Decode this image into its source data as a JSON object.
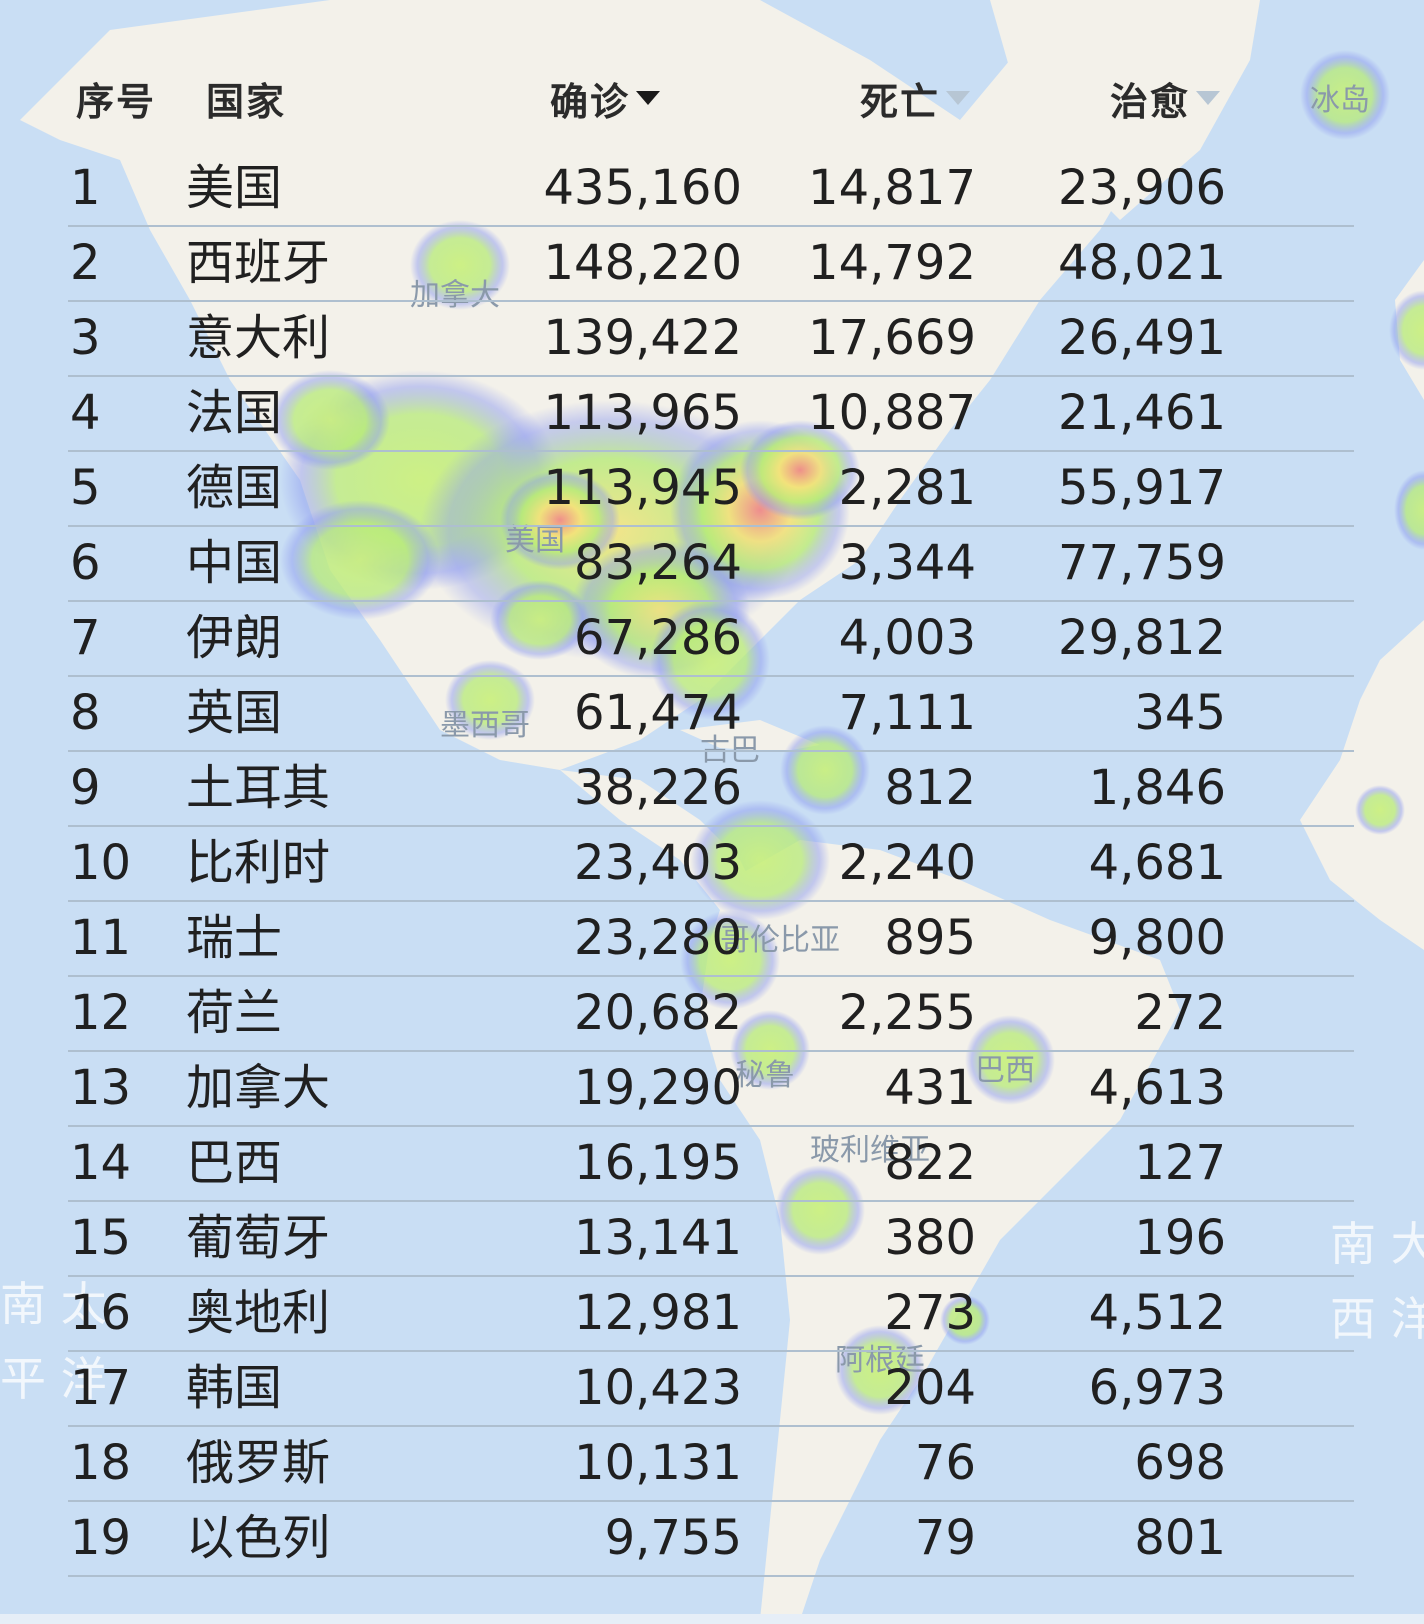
{
  "table": {
    "headers": {
      "index": "序号",
      "country": "国家",
      "confirmed": "确诊",
      "deaths": "死亡",
      "cured": "治愈"
    },
    "sort": {
      "active": "confirmed"
    },
    "rows": [
      {
        "index": "1",
        "country": "美国",
        "confirmed": "435,160",
        "deaths": "14,817",
        "cured": "23,906"
      },
      {
        "index": "2",
        "country": "西班牙",
        "confirmed": "148,220",
        "deaths": "14,792",
        "cured": "48,021"
      },
      {
        "index": "3",
        "country": "意大利",
        "confirmed": "139,422",
        "deaths": "17,669",
        "cured": "26,491"
      },
      {
        "index": "4",
        "country": "法国",
        "confirmed": "113,965",
        "deaths": "10,887",
        "cured": "21,461"
      },
      {
        "index": "5",
        "country": "德国",
        "confirmed": "113,945",
        "deaths": "2,281",
        "cured": "55,917"
      },
      {
        "index": "6",
        "country": "中国",
        "confirmed": "83,264",
        "deaths": "3,344",
        "cured": "77,759"
      },
      {
        "index": "7",
        "country": "伊朗",
        "confirmed": "67,286",
        "deaths": "4,003",
        "cured": "29,812"
      },
      {
        "index": "8",
        "country": "英国",
        "confirmed": "61,474",
        "deaths": "7,111",
        "cured": "345"
      },
      {
        "index": "9",
        "country": "土耳其",
        "confirmed": "38,226",
        "deaths": "812",
        "cured": "1,846"
      },
      {
        "index": "10",
        "country": "比利时",
        "confirmed": "23,403",
        "deaths": "2,240",
        "cured": "4,681"
      },
      {
        "index": "11",
        "country": "瑞士",
        "confirmed": "23,280",
        "deaths": "895",
        "cured": "9,800"
      },
      {
        "index": "12",
        "country": "荷兰",
        "confirmed": "20,682",
        "deaths": "2,255",
        "cured": "272"
      },
      {
        "index": "13",
        "country": "加拿大",
        "confirmed": "19,290",
        "deaths": "431",
        "cured": "4,613"
      },
      {
        "index": "14",
        "country": "巴西",
        "confirmed": "16,195",
        "deaths": "822",
        "cured": "127"
      },
      {
        "index": "15",
        "country": "葡萄牙",
        "confirmed": "13,141",
        "deaths": "380",
        "cured": "196"
      },
      {
        "index": "16",
        "country": "奥地利",
        "confirmed": "12,981",
        "deaths": "273",
        "cured": "4,512"
      },
      {
        "index": "17",
        "country": "韩国",
        "confirmed": "10,423",
        "deaths": "204",
        "cured": "6,973"
      },
      {
        "index": "18",
        "country": "俄罗斯",
        "confirmed": "10,131",
        "deaths": "76",
        "cured": "698"
      },
      {
        "index": "19",
        "country": "以色列",
        "confirmed": "9,755",
        "deaths": "79",
        "cured": "801"
      }
    ]
  },
  "map": {
    "labels": {
      "canada": "加拿大",
      "usa": "美国",
      "mexico": "墨西哥",
      "cuba": "古巴",
      "colombia": "哥伦比亚",
      "peru": "秘鲁",
      "brazil": "巴西",
      "bolivia": "玻利维亚",
      "argentina": "阿根廷",
      "iceland": "冰岛"
    },
    "ocean_labels": {
      "south_pacific_1": "南 太",
      "south_pacific_2": "平 洋",
      "south_atlantic_1": "南 大",
      "south_atlantic_2": "西 洋"
    },
    "colors": {
      "ocean": "#c9def4",
      "land": "#f3f1ea",
      "heat_high": "#f08a8a",
      "heat_mid": "#f4e27a",
      "heat_low": "#b6ea78",
      "heat_edge": "#8f9cf0"
    }
  }
}
